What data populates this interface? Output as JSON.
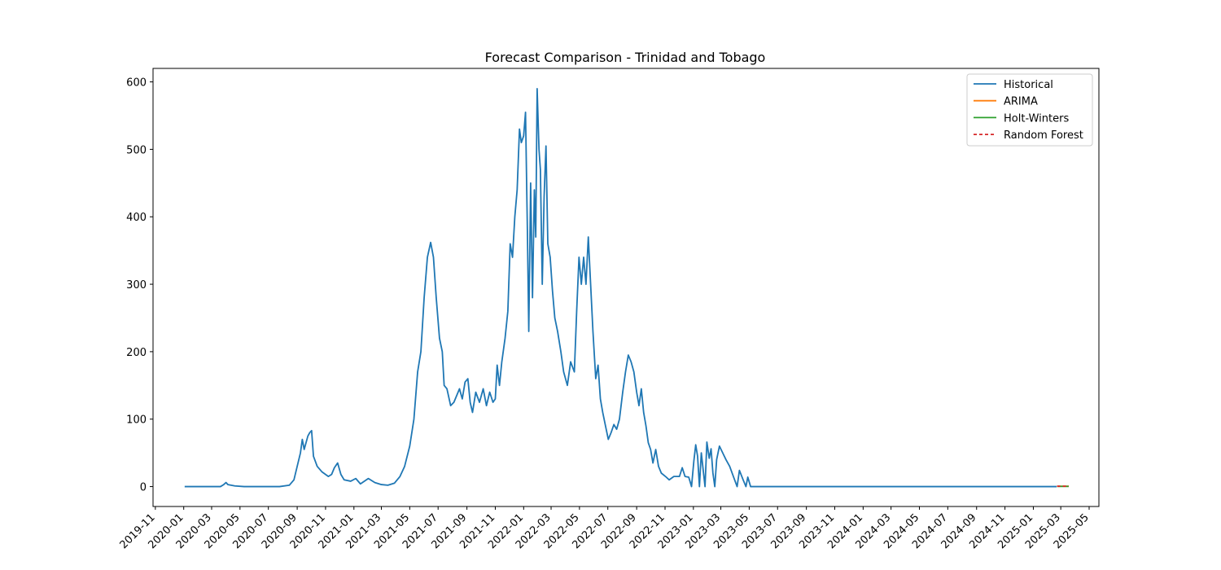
{
  "chart_data": {
    "type": "line",
    "title": "Forecast Comparison - Trinidad and Tobago",
    "xlabel": "",
    "ylabel": "",
    "x_range": [
      "2019-10-27",
      "2025-05-22"
    ],
    "ylim": [
      -29.5,
      620
    ],
    "yticks": [
      0,
      100,
      200,
      300,
      400,
      500,
      600
    ],
    "xticks": [
      "2019-11",
      "2020-01",
      "2020-03",
      "2020-05",
      "2020-07",
      "2020-09",
      "2020-11",
      "2021-01",
      "2021-03",
      "2021-05",
      "2021-07",
      "2021-09",
      "2021-11",
      "2022-01",
      "2022-03",
      "2022-05",
      "2022-07",
      "2022-09",
      "2022-11",
      "2023-01",
      "2023-03",
      "2023-05",
      "2023-07",
      "2023-09",
      "2023-11",
      "2024-01",
      "2024-03",
      "2024-05",
      "2024-07",
      "2024-09",
      "2024-11",
      "2025-01",
      "2025-03",
      "2025-05"
    ],
    "grid": false,
    "legend_position": "upper-right",
    "series": [
      {
        "name": "Historical",
        "color": "#1f77b4",
        "points": [
          [
            "2020-01-03",
            0
          ],
          [
            "2020-03-20",
            0
          ],
          [
            "2020-03-27",
            3
          ],
          [
            "2020-04-01",
            6
          ],
          [
            "2020-04-05",
            3
          ],
          [
            "2020-04-20",
            1
          ],
          [
            "2020-05-10",
            0
          ],
          [
            "2020-07-25",
            0
          ],
          [
            "2020-08-15",
            2
          ],
          [
            "2020-08-25",
            10
          ],
          [
            "2020-09-01",
            30
          ],
          [
            "2020-09-08",
            50
          ],
          [
            "2020-09-12",
            70
          ],
          [
            "2020-09-16",
            55
          ],
          [
            "2020-09-20",
            65
          ],
          [
            "2020-09-24",
            75
          ],
          [
            "2020-09-28",
            80
          ],
          [
            "2020-10-02",
            83
          ],
          [
            "2020-10-06",
            45
          ],
          [
            "2020-10-14",
            30
          ],
          [
            "2020-10-24",
            22
          ],
          [
            "2020-11-07",
            15
          ],
          [
            "2020-11-14",
            18
          ],
          [
            "2020-11-20",
            28
          ],
          [
            "2020-11-27",
            35
          ],
          [
            "2020-12-04",
            18
          ],
          [
            "2020-12-11",
            10
          ],
          [
            "2020-12-25",
            8
          ],
          [
            "2021-01-05",
            12
          ],
          [
            "2021-01-15",
            4
          ],
          [
            "2021-02-01",
            12
          ],
          [
            "2021-02-15",
            6
          ],
          [
            "2021-03-01",
            3
          ],
          [
            "2021-03-15",
            2
          ],
          [
            "2021-03-29",
            5
          ],
          [
            "2021-04-10",
            15
          ],
          [
            "2021-04-20",
            30
          ],
          [
            "2021-05-01",
            60
          ],
          [
            "2021-05-10",
            100
          ],
          [
            "2021-05-18",
            170
          ],
          [
            "2021-05-25",
            200
          ],
          [
            "2021-06-01",
            280
          ],
          [
            "2021-06-08",
            340
          ],
          [
            "2021-06-15",
            362
          ],
          [
            "2021-06-21",
            340
          ],
          [
            "2021-06-27",
            280
          ],
          [
            "2021-07-04",
            220
          ],
          [
            "2021-07-10",
            200
          ],
          [
            "2021-07-14",
            150
          ],
          [
            "2021-07-20",
            145
          ],
          [
            "2021-07-28",
            120
          ],
          [
            "2021-08-04",
            125
          ],
          [
            "2021-08-10",
            135
          ],
          [
            "2021-08-16",
            145
          ],
          [
            "2021-08-22",
            130
          ],
          [
            "2021-08-28",
            155
          ],
          [
            "2021-09-03",
            160
          ],
          [
            "2021-09-08",
            125
          ],
          [
            "2021-09-13",
            110
          ],
          [
            "2021-09-20",
            140
          ],
          [
            "2021-09-28",
            125
          ],
          [
            "2021-10-06",
            145
          ],
          [
            "2021-10-13",
            120
          ],
          [
            "2021-10-20",
            140
          ],
          [
            "2021-10-27",
            125
          ],
          [
            "2021-11-01",
            130
          ],
          [
            "2021-11-05",
            180
          ],
          [
            "2021-11-10",
            150
          ],
          [
            "2021-11-15",
            185
          ],
          [
            "2021-11-22",
            220
          ],
          [
            "2021-11-28",
            260
          ],
          [
            "2021-12-03",
            360
          ],
          [
            "2021-12-08",
            340
          ],
          [
            "2021-12-13",
            400
          ],
          [
            "2021-12-18",
            440
          ],
          [
            "2021-12-23",
            530
          ],
          [
            "2021-12-27",
            510
          ],
          [
            "2022-01-01",
            520
          ],
          [
            "2022-01-05",
            555
          ],
          [
            "2022-01-09",
            380
          ],
          [
            "2022-01-12",
            230
          ],
          [
            "2022-01-16",
            450
          ],
          [
            "2022-01-20",
            280
          ],
          [
            "2022-01-24",
            440
          ],
          [
            "2022-01-27",
            370
          ],
          [
            "2022-01-30",
            590
          ],
          [
            "2022-02-03",
            500
          ],
          [
            "2022-02-06",
            470
          ],
          [
            "2022-02-10",
            300
          ],
          [
            "2022-02-14",
            430
          ],
          [
            "2022-02-18",
            505
          ],
          [
            "2022-02-22",
            360
          ],
          [
            "2022-02-27",
            340
          ],
          [
            "2022-03-04",
            290
          ],
          [
            "2022-03-09",
            250
          ],
          [
            "2022-03-15",
            230
          ],
          [
            "2022-03-22",
            200
          ],
          [
            "2022-03-28",
            170
          ],
          [
            "2022-04-05",
            150
          ],
          [
            "2022-04-12",
            185
          ],
          [
            "2022-04-20",
            170
          ],
          [
            "2022-04-25",
            260
          ],
          [
            "2022-04-30",
            340
          ],
          [
            "2022-05-05",
            300
          ],
          [
            "2022-05-10",
            340
          ],
          [
            "2022-05-15",
            300
          ],
          [
            "2022-05-20",
            370
          ],
          [
            "2022-05-25",
            300
          ],
          [
            "2022-05-30",
            230
          ],
          [
            "2022-06-05",
            160
          ],
          [
            "2022-06-10",
            180
          ],
          [
            "2022-06-15",
            130
          ],
          [
            "2022-06-20",
            110
          ],
          [
            "2022-06-26",
            90
          ],
          [
            "2022-07-02",
            70
          ],
          [
            "2022-07-08",
            80
          ],
          [
            "2022-07-14",
            92
          ],
          [
            "2022-07-20",
            85
          ],
          [
            "2022-07-26",
            100
          ],
          [
            "2022-08-02",
            140
          ],
          [
            "2022-08-08",
            170
          ],
          [
            "2022-08-14",
            195
          ],
          [
            "2022-08-20",
            185
          ],
          [
            "2022-08-26",
            170
          ],
          [
            "2022-09-01",
            140
          ],
          [
            "2022-09-06",
            120
          ],
          [
            "2022-09-11",
            145
          ],
          [
            "2022-09-16",
            110
          ],
          [
            "2022-09-21",
            90
          ],
          [
            "2022-09-26",
            65
          ],
          [
            "2022-10-01",
            55
          ],
          [
            "2022-10-06",
            35
          ],
          [
            "2022-10-12",
            55
          ],
          [
            "2022-10-18",
            30
          ],
          [
            "2022-10-24",
            20
          ],
          [
            "2022-11-02",
            15
          ],
          [
            "2022-11-10",
            10
          ],
          [
            "2022-11-20",
            15
          ],
          [
            "2022-12-02",
            15
          ],
          [
            "2022-12-08",
            28
          ],
          [
            "2022-12-14",
            15
          ],
          [
            "2022-12-22",
            14
          ],
          [
            "2022-12-28",
            0
          ],
          [
            "2023-01-02",
            38
          ],
          [
            "2023-01-06",
            62
          ],
          [
            "2023-01-10",
            45
          ],
          [
            "2023-01-14",
            0
          ],
          [
            "2023-01-18",
            50
          ],
          [
            "2023-01-22",
            25
          ],
          [
            "2023-01-26",
            0
          ],
          [
            "2023-01-30",
            66
          ],
          [
            "2023-02-04",
            42
          ],
          [
            "2023-02-08",
            56
          ],
          [
            "2023-02-12",
            20
          ],
          [
            "2023-02-16",
            0
          ],
          [
            "2023-02-20",
            40
          ],
          [
            "2023-02-26",
            60
          ],
          [
            "2023-03-05",
            50
          ],
          [
            "2023-03-12",
            40
          ],
          [
            "2023-03-20",
            30
          ],
          [
            "2023-03-28",
            15
          ],
          [
            "2023-04-05",
            0
          ],
          [
            "2023-04-10",
            24
          ],
          [
            "2023-04-18",
            10
          ],
          [
            "2023-04-24",
            0
          ],
          [
            "2023-04-28",
            14
          ],
          [
            "2023-05-04",
            0
          ],
          [
            "2025-02-20",
            0
          ]
        ]
      },
      {
        "name": "ARIMA",
        "color": "#ff7f0e",
        "points": [
          [
            "2025-02-21",
            0.5
          ],
          [
            "2025-03-18",
            0.5
          ]
        ]
      },
      {
        "name": "Holt-Winters",
        "color": "#2ca02c",
        "points": [
          [
            "2025-02-21",
            0.3
          ],
          [
            "2025-03-18",
            0.3
          ]
        ]
      },
      {
        "name": "Random Forest",
        "color": "#d62728",
        "dashed": true,
        "points": [
          [
            "2025-02-21",
            0.5
          ],
          [
            "2025-03-18",
            0.5
          ]
        ]
      }
    ]
  }
}
